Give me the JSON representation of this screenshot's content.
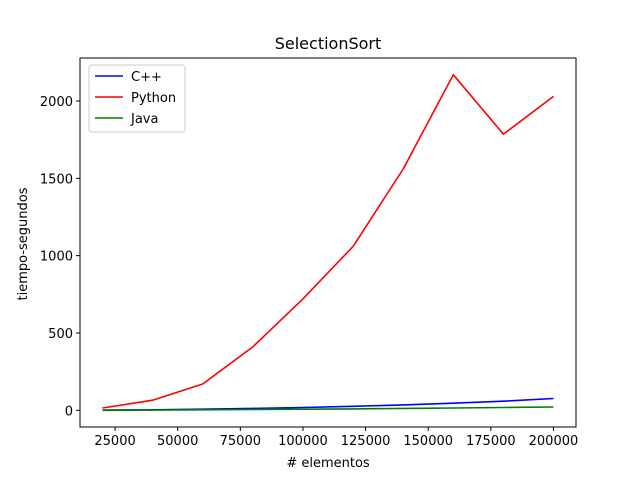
{
  "chart_data": {
    "type": "line",
    "title": "SelectionSort",
    "xlabel": "# elementos",
    "ylabel": "tiempo-segundos",
    "x": [
      20000,
      40000,
      60000,
      80000,
      100000,
      120000,
      140000,
      160000,
      180000,
      200000
    ],
    "series": [
      {
        "name": "C++",
        "color": "#0000ff",
        "values": [
          1,
          3,
          7,
          12,
          18,
          26,
          35,
          46,
          59,
          76
        ]
      },
      {
        "name": "Python",
        "color": "#ff0000",
        "values": [
          15,
          65,
          170,
          410,
          720,
          1060,
          1560,
          2170,
          1785,
          2030
        ]
      },
      {
        "name": "Java",
        "color": "#008000",
        "values": [
          0,
          1,
          3,
          5,
          7,
          9,
          12,
          15,
          18,
          21
        ]
      }
    ],
    "xticks": [
      25000,
      50000,
      75000,
      100000,
      125000,
      150000,
      175000,
      200000
    ],
    "yticks": [
      0,
      500,
      1000,
      1500,
      2000
    ],
    "xlim": [
      11000,
      209000
    ],
    "ylim": [
      -108,
      2278
    ],
    "grid": false,
    "legend": "top-left"
  }
}
